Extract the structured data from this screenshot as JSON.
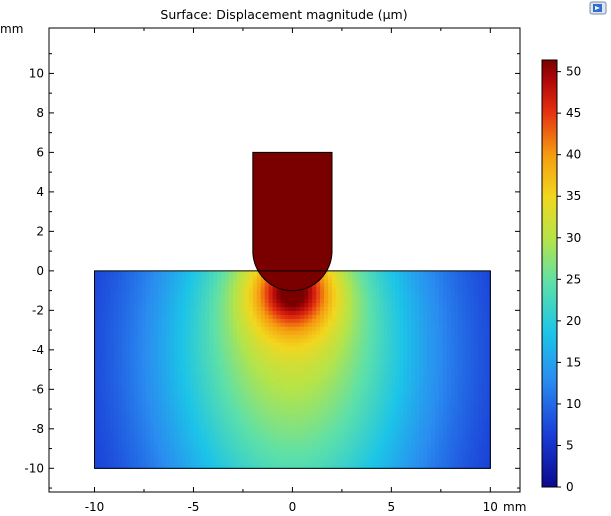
{
  "chart_data": {
    "type": "heatmap",
    "title": "Surface: Displacement magnitude (µm)",
    "x_unit": "mm",
    "y_unit": "mm",
    "xlim": [
      -12.3,
      11.5
    ],
    "ylim": [
      -11.2,
      12.3
    ],
    "x_ticks": [
      -10,
      -5,
      0,
      5,
      10
    ],
    "x_tick_labels": [
      "-10",
      "-5",
      "0",
      "5",
      "10"
    ],
    "y_ticks": [
      -10,
      -8,
      -6,
      -4,
      -2,
      0,
      2,
      4,
      6,
      8,
      10
    ],
    "y_tick_labels": [
      "-10",
      "-8",
      "-6",
      "-4",
      "-2",
      "0",
      "2",
      "4",
      "6",
      "8",
      "10"
    ],
    "colorbar": {
      "min": 0,
      "max": 51.4,
      "ticks": [
        0,
        5,
        10,
        15,
        20,
        25,
        30,
        35,
        40,
        45,
        50
      ],
      "tick_labels": [
        "0",
        "5",
        "10",
        "15",
        "20",
        "25",
        "30",
        "35",
        "40",
        "45",
        "50"
      ],
      "colormap": "rainbow"
    },
    "geometry": {
      "substrate": {
        "x": [
          -10,
          10
        ],
        "y": [
          -10,
          0
        ]
      },
      "indenter": {
        "x": [
          -2,
          2
        ],
        "y": [
          -1,
          6
        ],
        "tip_radius": 2,
        "tip_center": [
          0,
          1
        ]
      }
    },
    "field": {
      "indenter_value": 51.4,
      "contact_point": [
        0,
        -1
      ]
    }
  },
  "toolbar": {
    "corner_icon": "export-image-icon"
  }
}
